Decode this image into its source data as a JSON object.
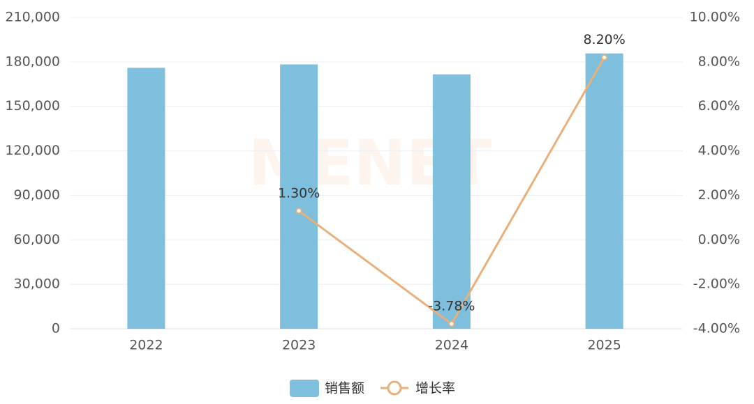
{
  "chart_data": {
    "type": "bar-line",
    "watermark": "MENET",
    "categories": [
      "2022",
      "2023",
      "2024",
      "2025"
    ],
    "series": [
      {
        "name": "销售额",
        "type": "bar",
        "color": "#7dbfdc",
        "values": [
          176000,
          178300,
          171600,
          185700
        ]
      },
      {
        "name": "增长率",
        "type": "line",
        "axis": "y2",
        "color": "#e8b07a",
        "values": [
          null,
          1.3,
          -3.78,
          8.2
        ],
        "value_labels": [
          null,
          "1.30%",
          "-3.78%",
          "8.20%"
        ]
      }
    ],
    "ylim": [
      0,
      210000
    ],
    "yticks": [
      0,
      {
        "value": 30000,
        "label": "30,000"
      },
      {
        "value": 60000,
        "label": "60,000"
      },
      {
        "value": 90000,
        "label": "90,000"
      },
      {
        "value": 120000,
        "label": "120,000"
      },
      {
        "value": 150000,
        "label": "150,000"
      },
      {
        "value": 180000,
        "label": "180,000"
      },
      {
        "value": 210000,
        "label": "210,000"
      }
    ],
    "y2lim": [
      -4,
      10
    ],
    "y2ticks": [
      {
        "value": -4,
        "label": "-4.00%"
      },
      {
        "value": -2,
        "label": "-2.00%"
      },
      {
        "value": 0,
        "label": "0.00%"
      },
      {
        "value": 2,
        "label": "2.00%"
      },
      {
        "value": 4,
        "label": "4.00%"
      },
      {
        "value": 6,
        "label": "6.00%"
      },
      {
        "value": 8,
        "label": "8.00%"
      },
      {
        "value": 10,
        "label": "10.00%"
      }
    ],
    "grid": true,
    "legend": "bottom"
  }
}
